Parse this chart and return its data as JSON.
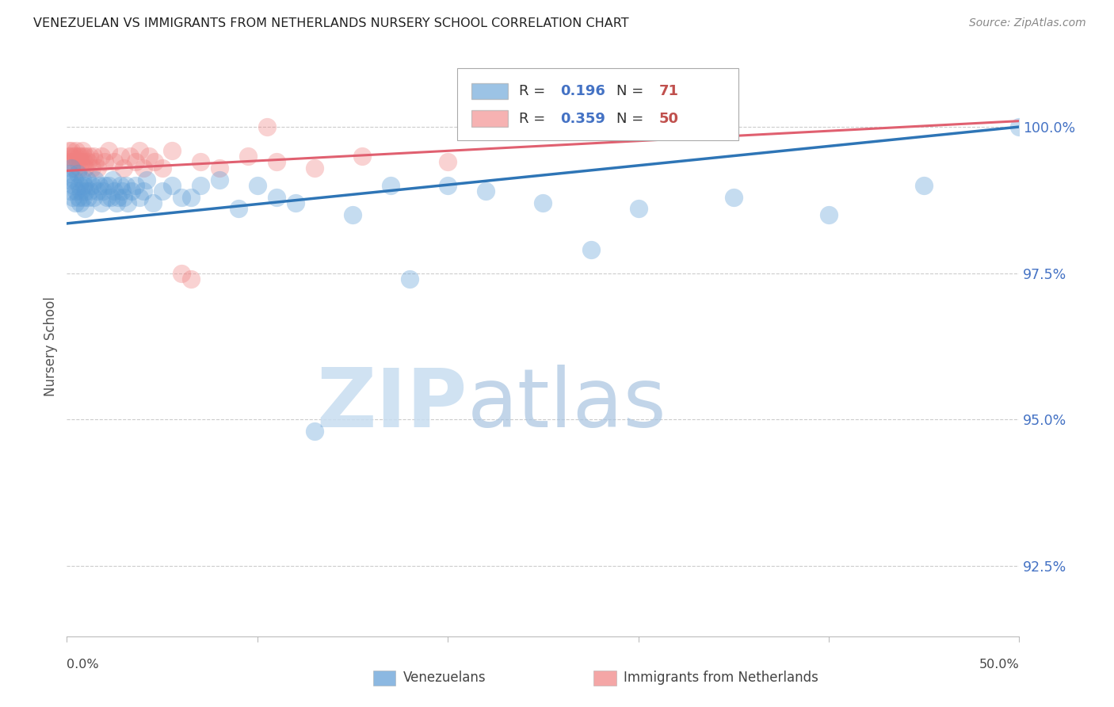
{
  "title": "VENEZUELAN VS IMMIGRANTS FROM NETHERLANDS NURSERY SCHOOL CORRELATION CHART",
  "source": "Source: ZipAtlas.com",
  "ylabel": "Nursery School",
  "ytick_values": [
    92.5,
    95.0,
    97.5,
    100.0
  ],
  "xmin": 0.0,
  "xmax": 50.0,
  "ymin": 91.3,
  "ymax": 101.2,
  "blue_color": "#5B9BD5",
  "pink_color": "#F08080",
  "blue_line_color": "#2E75B6",
  "pink_line_color": "#E06070",
  "venezuelans_label": "Venezuelans",
  "netherlands_label": "Immigrants from Netherlands",
  "legend_r1_val": "0.196",
  "legend_n1_val": "71",
  "legend_r2_val": "0.359",
  "legend_n2_val": "50",
  "venezuelans_x": [
    0.1,
    0.15,
    0.2,
    0.25,
    0.3,
    0.35,
    0.4,
    0.45,
    0.5,
    0.55,
    0.6,
    0.65,
    0.7,
    0.75,
    0.8,
    0.85,
    0.9,
    0.95,
    1.0,
    1.05,
    1.1,
    1.2,
    1.3,
    1.4,
    1.5,
    1.6,
    1.7,
    1.8,
    1.9,
    2.0,
    2.1,
    2.2,
    2.3,
    2.4,
    2.5,
    2.6,
    2.7,
    2.8,
    2.9,
    3.0,
    3.1,
    3.2,
    3.4,
    3.6,
    3.8,
    4.0,
    4.2,
    4.5,
    5.0,
    5.5,
    6.0,
    6.5,
    7.0,
    8.0,
    9.0,
    10.0,
    11.0,
    12.0,
    13.0,
    15.0,
    17.0,
    18.0,
    20.0,
    22.0,
    25.0,
    27.5,
    30.0,
    35.0,
    40.0,
    45.0,
    50.0
  ],
  "venezuelans_y": [
    99.1,
    99.2,
    98.9,
    99.3,
    98.8,
    99.0,
    99.1,
    98.7,
    98.9,
    99.2,
    98.8,
    99.0,
    98.7,
    98.9,
    99.1,
    98.8,
    99.0,
    98.6,
    98.9,
    99.1,
    98.8,
    98.9,
    99.0,
    98.8,
    99.1,
    98.9,
    99.0,
    98.7,
    98.9,
    99.0,
    98.8,
    99.0,
    98.8,
    99.1,
    98.9,
    98.7,
    98.8,
    99.0,
    98.9,
    98.8,
    99.0,
    98.7,
    98.9,
    99.0,
    98.8,
    98.9,
    99.1,
    98.7,
    98.9,
    99.0,
    98.8,
    98.8,
    99.0,
    99.1,
    98.6,
    99.0,
    98.8,
    98.7,
    94.8,
    98.5,
    99.0,
    97.4,
    99.0,
    98.9,
    98.7,
    97.9,
    98.6,
    98.8,
    98.5,
    99.0,
    100.0
  ],
  "netherlands_x": [
    0.05,
    0.1,
    0.15,
    0.2,
    0.25,
    0.3,
    0.35,
    0.4,
    0.45,
    0.5,
    0.55,
    0.6,
    0.65,
    0.7,
    0.75,
    0.8,
    0.85,
    0.9,
    0.95,
    1.0,
    1.1,
    1.2,
    1.3,
    1.4,
    1.5,
    1.6,
    1.8,
    2.0,
    2.2,
    2.5,
    2.8,
    3.0,
    3.3,
    3.6,
    3.8,
    4.0,
    4.3,
    4.6,
    5.0,
    5.5,
    6.0,
    6.5,
    7.0,
    8.0,
    9.5,
    11.0,
    13.0,
    15.5,
    20.0,
    10.5
  ],
  "netherlands_y": [
    99.5,
    99.6,
    99.4,
    99.5,
    99.6,
    99.4,
    99.5,
    99.3,
    99.5,
    99.6,
    99.4,
    99.5,
    99.3,
    99.5,
    99.4,
    99.6,
    99.5,
    99.4,
    99.3,
    99.5,
    99.4,
    99.5,
    99.3,
    99.5,
    99.4,
    99.3,
    99.5,
    99.4,
    99.6,
    99.4,
    99.5,
    99.3,
    99.5,
    99.4,
    99.6,
    99.3,
    99.5,
    99.4,
    99.3,
    99.6,
    97.5,
    97.4,
    99.4,
    99.3,
    99.5,
    99.4,
    99.3,
    99.5,
    99.4,
    100.0
  ]
}
